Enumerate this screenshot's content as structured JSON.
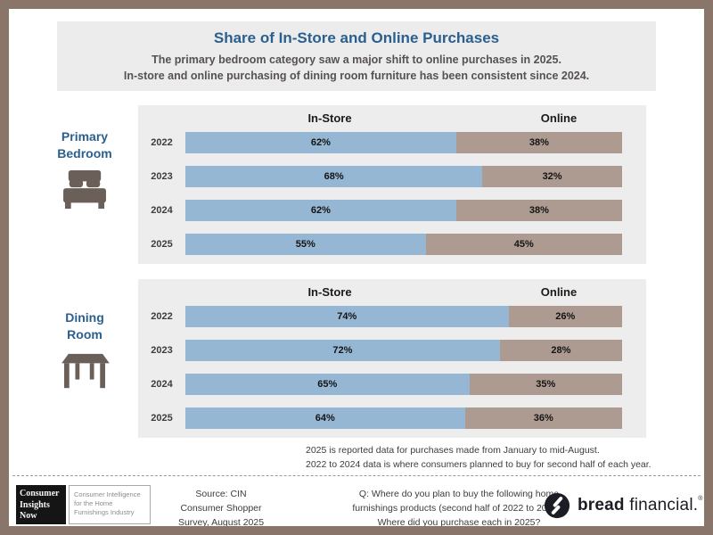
{
  "header": {
    "title": "Share of In-Store and Online Purchases",
    "subtitle_line1": "The primary bedroom category saw a major shift to online purchases in 2025.",
    "subtitle_line2": "In-store and online purchasing of dining room furniture has been consistent since 2024."
  },
  "chart_data": [
    {
      "type": "bar",
      "subtype": "horizontal-stacked-100pct",
      "section": "Primary Bedroom",
      "categories": [
        "2022",
        "2023",
        "2024",
        "2025"
      ],
      "series": [
        {
          "name": "In-Store",
          "values": [
            62,
            68,
            62,
            55
          ],
          "color": "#95b7d4"
        },
        {
          "name": "Online",
          "values": [
            38,
            32,
            38,
            45
          ],
          "color": "#ad9b91"
        }
      ],
      "value_suffix": "%",
      "xlim": [
        0,
        100
      ],
      "legend_position": "column-headers-above-bars"
    },
    {
      "type": "bar",
      "subtype": "horizontal-stacked-100pct",
      "section": "Dining Room",
      "categories": [
        "2022",
        "2023",
        "2024",
        "2025"
      ],
      "series": [
        {
          "name": "In-Store",
          "values": [
            74,
            72,
            65,
            64
          ],
          "color": "#95b7d4"
        },
        {
          "name": "Online",
          "values": [
            26,
            28,
            35,
            36
          ],
          "color": "#ad9b91"
        }
      ],
      "value_suffix": "%",
      "xlim": [
        0,
        100
      ],
      "legend_position": "column-headers-above-bars"
    }
  ],
  "sections": [
    {
      "label_line1": "Primary",
      "label_line2": "Bedroom",
      "icon": "bed-icon"
    },
    {
      "label_line1": "Dining",
      "label_line2": "Room",
      "icon": "dining-table-icon"
    }
  ],
  "footnote": {
    "line1": "2025 is reported data for purchases made from January to mid-August.",
    "line2": "2022 to 2024 data is where consumers planned to buy for second half of each year."
  },
  "footer": {
    "cin_logo": {
      "line1": "Consumer",
      "line2": "Insights",
      "line3": "Now",
      "tagline_line1": "Consumer Intelligence",
      "tagline_line2": "for the Home",
      "tagline_line3": "Furnishings Industry"
    },
    "source_line1": "Source: CIN",
    "source_line2": "Consumer Shopper",
    "source_line3": "Survey, August 2025",
    "question_line1": "Q: Where do you plan to buy the following home",
    "question_line2": "furnishings products (second half of 2022 to 2024)?",
    "question_line3": "Where did you purchase each in 2025?",
    "brand_bold": "bread",
    "brand_regular": " financial.",
    "brand_reg_mark": "®"
  },
  "colors": {
    "instore_blue": "#95b7d4",
    "online_taupe": "#ad9b91",
    "panel_bg": "#ededee",
    "title_bg": "#ececed",
    "accent_blue": "#2b5f8e",
    "icon_brown": "#6b6059",
    "frame_brown": "#8a756b"
  }
}
